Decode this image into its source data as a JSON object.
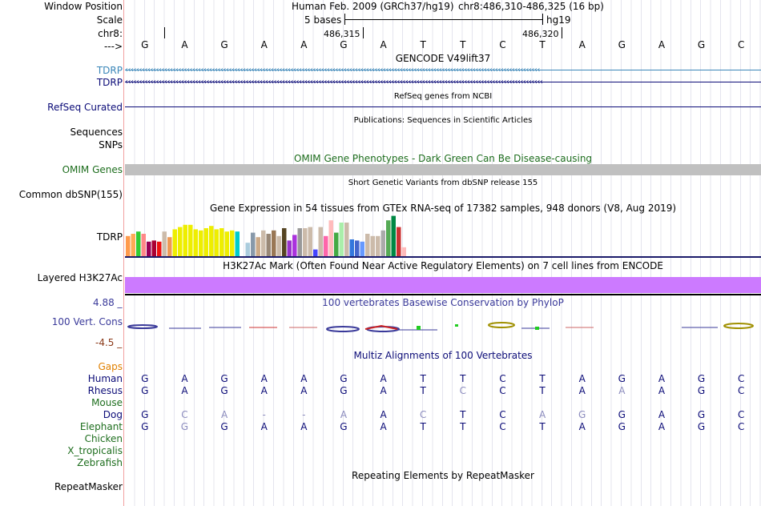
{
  "header": {
    "window_position_label": "Window Position",
    "scale_label": "Scale",
    "chrom_label": "chr8:",
    "strand_label": "--->",
    "assembly_text": "Human Feb. 2009 (GRCh37/hg19)",
    "position_text": "chr8:486,310-486,325 (16 bp)",
    "scale_text": "5 bases",
    "db_text": "hg19",
    "pos_a": "486,315",
    "pos_b": "486,320"
  },
  "ref_bases": [
    "G",
    "A",
    "G",
    "A",
    "A",
    "G",
    "A",
    "T",
    "T",
    "C",
    "T",
    "A",
    "G",
    "A",
    "G",
    "C"
  ],
  "tracks": {
    "gencode": {
      "title": "GENCODE V49lift37",
      "label1": "TDRP",
      "label2": "TDRP",
      "color1": "#3a86b8",
      "color2": "#0c0c78"
    },
    "refseq": {
      "title": "RefSeq genes from NCBI",
      "label": "RefSeq Curated",
      "color": "#0c0c78"
    },
    "pubs": {
      "title": "Publications: Sequences in Scientific Articles",
      "label": "Sequences"
    },
    "snps": {
      "label": "SNPs"
    },
    "omim": {
      "title": "OMIM Gene Phenotypes - Dark Green Can Be Disease-causing",
      "label": "OMIM Genes",
      "color": "#1e6e1e",
      "bar_color": "#c0c0c0"
    },
    "dbsnp": {
      "title": "Short Genetic Variants from dbSNP release 155",
      "label": "Common dbSNP(155)"
    },
    "gtex": {
      "title": "Gene Expression in 54 tissues from GTEx RNA-seq of 17382 samples, 948 donors (V8, Aug 2019)",
      "label": "TDRP",
      "bars": [
        {
          "v": 18,
          "c": "#ff9a4c"
        },
        {
          "v": 20,
          "c": "#ffaa55"
        },
        {
          "v": 22,
          "c": "#33cc33"
        },
        {
          "v": 20,
          "c": "#ff8888"
        },
        {
          "v": 13,
          "c": "#990055"
        },
        {
          "v": 14,
          "c": "#aa0033"
        },
        {
          "v": 13,
          "c": "#ee1111"
        },
        {
          "v": 22,
          "c": "#ccbbaa"
        },
        {
          "v": 17,
          "c": "#ee9955"
        },
        {
          "v": 24,
          "c": "#eeee00"
        },
        {
          "v": 26,
          "c": "#eeee00"
        },
        {
          "v": 28,
          "c": "#eeee00"
        },
        {
          "v": 28,
          "c": "#eeee00"
        },
        {
          "v": 24,
          "c": "#eeee00"
        },
        {
          "v": 23,
          "c": "#eeee00"
        },
        {
          "v": 25,
          "c": "#eeee00"
        },
        {
          "v": 27,
          "c": "#eeee00"
        },
        {
          "v": 24,
          "c": "#eeee00"
        },
        {
          "v": 25,
          "c": "#eeee00"
        },
        {
          "v": 22,
          "c": "#eeee00"
        },
        {
          "v": 23,
          "c": "#eeee00"
        },
        {
          "v": 22,
          "c": "#00cccc"
        },
        {
          "v": 0,
          "c": "#ffffff"
        },
        {
          "v": 12,
          "c": "#aaccdd"
        },
        {
          "v": 21,
          "c": "#8899aa"
        },
        {
          "v": 17,
          "c": "#ccaa88"
        },
        {
          "v": 23,
          "c": "#ccbbaa"
        },
        {
          "v": 20,
          "c": "#998877"
        },
        {
          "v": 23,
          "c": "#997755"
        },
        {
          "v": 18,
          "c": "#ccbbaa"
        },
        {
          "v": 25,
          "c": "#554422"
        },
        {
          "v": 14,
          "c": "#9933cc"
        },
        {
          "v": 19,
          "c": "#aa33dd"
        },
        {
          "v": 25,
          "c": "#999999"
        },
        {
          "v": 25,
          "c": "#ccbbaa"
        },
        {
          "v": 26,
          "c": "#ccbbaa"
        },
        {
          "v": 6,
          "c": "#4444ff"
        },
        {
          "v": 26,
          "c": "#ccbbaa"
        },
        {
          "v": 18,
          "c": "#ff66aa"
        },
        {
          "v": 32,
          "c": "#ffbbbb"
        },
        {
          "v": 21,
          "c": "#44aa44"
        },
        {
          "v": 30,
          "c": "#aaeeaa"
        },
        {
          "v": 30,
          "c": "#ccbbaa"
        },
        {
          "v": 15,
          "c": "#3377dd"
        },
        {
          "v": 14,
          "c": "#4466cc"
        },
        {
          "v": 13,
          "c": "#6699ff"
        },
        {
          "v": 20,
          "c": "#ccbbaa"
        },
        {
          "v": 18,
          "c": "#ccbbaa"
        },
        {
          "v": 18,
          "c": "#ccbbaa"
        },
        {
          "v": 23,
          "c": "#aaaaaa"
        },
        {
          "v": 32,
          "c": "#55aa55"
        },
        {
          "v": 36,
          "c": "#008844"
        },
        {
          "v": 26,
          "c": "#cc3333"
        },
        {
          "v": 8,
          "c": "#ffbbbb"
        }
      ]
    },
    "h3k27ac": {
      "title": "H3K27Ac Mark (Often Found Near Active Regulatory Elements) on 7 cell lines from ENCODE",
      "label": "Layered H3K27Ac",
      "color": "#cc7aff"
    },
    "cons": {
      "title": "100 vertebrates Basewise Conservation by PhyloP",
      "label": "100 Vert. Cons",
      "max_label": "4.88 _",
      "min_label": "-4.5 _",
      "color": "#3a3a9a",
      "min_color": "#8b3a1a"
    },
    "multiz": {
      "title": "Multiz Alignments of 100 Vertebrates",
      "gaps_label": "Gaps",
      "species": [
        {
          "name": "Human",
          "color": "#0c0c78",
          "seq": [
            "G",
            "A",
            "G",
            "A",
            "A",
            "G",
            "A",
            "T",
            "T",
            "C",
            "T",
            "A",
            "G",
            "A",
            "G",
            "C"
          ],
          "faint": [
            false,
            false,
            false,
            false,
            false,
            false,
            false,
            false,
            false,
            false,
            false,
            false,
            false,
            false,
            false,
            false
          ]
        },
        {
          "name": "Rhesus",
          "color": "#0c0c78",
          "seq": [
            "G",
            "A",
            "G",
            "A",
            "A",
            "G",
            "A",
            "T",
            "C",
            "C",
            "T",
            "A",
            "A",
            "A",
            "G",
            "C"
          ],
          "faint": [
            false,
            false,
            false,
            false,
            false,
            false,
            false,
            false,
            true,
            false,
            false,
            false,
            true,
            false,
            false,
            false
          ]
        },
        {
          "name": "Mouse",
          "color": "#1e6e1e",
          "seq": [],
          "faint": []
        },
        {
          "name": "Dog",
          "color": "#0c0c78",
          "seq": [
            "G",
            "C",
            "A",
            "-",
            "-",
            "A",
            "A",
            "C",
            "T",
            "C",
            "A",
            "G",
            "G",
            "A",
            "G",
            "C"
          ],
          "faint": [
            false,
            true,
            true,
            true,
            true,
            true,
            false,
            true,
            false,
            false,
            true,
            true,
            false,
            false,
            false,
            false
          ]
        },
        {
          "name": "Elephant",
          "color": "#1e6e1e",
          "seq": [
            "G",
            "G",
            "G",
            "A",
            "A",
            "G",
            "A",
            "T",
            "T",
            "C",
            "T",
            "A",
            "G",
            "A",
            "G",
            "C"
          ],
          "faint": [
            false,
            true,
            false,
            false,
            false,
            false,
            false,
            false,
            false,
            false,
            false,
            false,
            false,
            false,
            false,
            false
          ]
        },
        {
          "name": "Chicken",
          "color": "#1e6e1e",
          "seq": [],
          "faint": []
        },
        {
          "name": "X_tropicalis",
          "color": "#1e6e1e",
          "seq": [],
          "faint": []
        },
        {
          "name": "Zebrafish",
          "color": "#1e6e1e",
          "seq": [],
          "faint": []
        }
      ]
    },
    "repeatmasker": {
      "title": "Repeating Elements by RepeatMasker",
      "label": "RepeatMasker"
    }
  }
}
